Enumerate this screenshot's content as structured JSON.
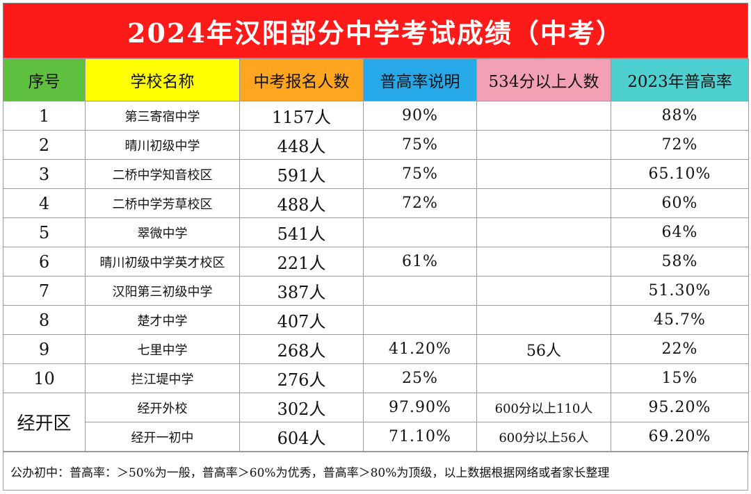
{
  "title": "2024年汉阳部分中学考试成绩（中考）",
  "colors": {
    "title_bg": "#ff1a1a",
    "header_bg": [
      "#5fbf3f",
      "#ffff00",
      "#ffa51f",
      "#27a8e8",
      "#f3a0b4",
      "#4fd0d0"
    ]
  },
  "headers": [
    "序号",
    "学校名称",
    "中考报名人数",
    "普高率说明",
    "534分以上人数",
    "2023年普高率"
  ],
  "rows": [
    {
      "idx": "1",
      "school": "第三寄宿中学",
      "count": "1157人",
      "rate": "90%",
      "above": "",
      "prev": "88%"
    },
    {
      "idx": "2",
      "school": "晴川初级中学",
      "count": "448人",
      "rate": "75%",
      "above": "",
      "prev": "72%"
    },
    {
      "idx": "3",
      "school": "二桥中学知音校区",
      "count": "591人",
      "rate": "75%",
      "above": "",
      "prev": "65.10%"
    },
    {
      "idx": "4",
      "school": "二桥中学芳草校区",
      "count": "488人",
      "rate": "72%",
      "above": "",
      "prev": "60%"
    },
    {
      "idx": "5",
      "school": "翠微中学",
      "count": "541人",
      "rate": "",
      "above": "",
      "prev": "64%"
    },
    {
      "idx": "6",
      "school": "晴川初级中学英才校区",
      "count": "221人",
      "rate": "61%",
      "above": "",
      "prev": "58%"
    },
    {
      "idx": "7",
      "school": "汉阳第三初级中学",
      "count": "387人",
      "rate": "",
      "above": "",
      "prev": "51.30%"
    },
    {
      "idx": "8",
      "school": "楚才中学",
      "count": "407人",
      "rate": "",
      "above": "",
      "prev": "45.7%"
    },
    {
      "idx": "9",
      "school": "七里中学",
      "count": "268人",
      "rate": "41.20%",
      "above": "56人",
      "prev": "22%"
    },
    {
      "idx": "10",
      "school": "拦江堤中学",
      "count": "276人",
      "rate": "25%",
      "above": "",
      "prev": "15%"
    }
  ],
  "group": {
    "label": "经开区",
    "rows": [
      {
        "school": "经开外校",
        "count": "302人",
        "rate": "97.90%",
        "above": "600分以上110人",
        "prev": "95.20%"
      },
      {
        "school": "经开一初中",
        "count": "604人",
        "rate": "71.10%",
        "above": "600分以上56人",
        "prev": "69.20%"
      }
    ]
  },
  "note": "公办初中：普高率：＞50%为一般，普高率＞60%为优秀，普高率＞80%为顶级，以上数据根据网络或者家长整理"
}
